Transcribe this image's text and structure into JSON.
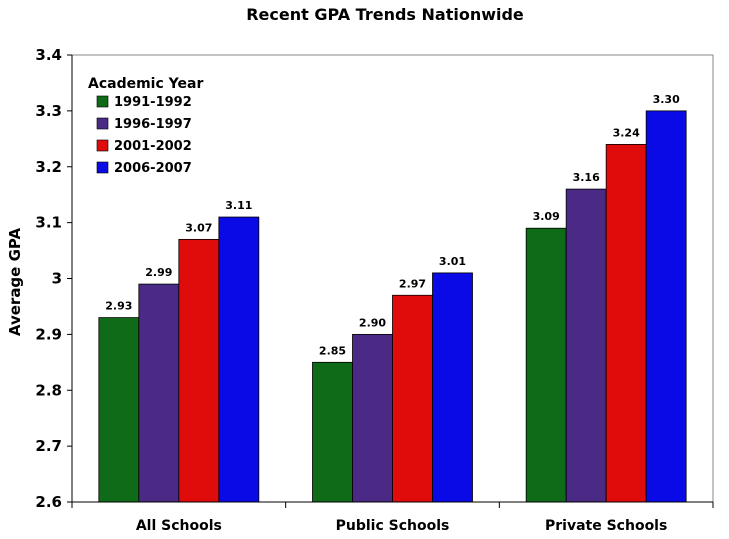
{
  "chart_data": {
    "type": "bar",
    "title": "Recent GPA Trends Nationwide",
    "xlabel": "",
    "ylabel": "Average GPA",
    "ylim": [
      2.6,
      3.4
    ],
    "y_ticks": [
      "2.6",
      "2.7",
      "2.8",
      "2.9",
      "3",
      "3.1",
      "3.2",
      "3.3",
      "3.4"
    ],
    "grid": false,
    "legend_title": "Academic Year",
    "legend_position": "top-left",
    "categories": [
      "All Schools",
      "Public Schools",
      "Private Schools"
    ],
    "series": [
      {
        "name": "1991-1992",
        "color": "#0f6b17",
        "values": [
          2.93,
          2.85,
          3.09
        ],
        "labels": [
          "2.93",
          "2.85",
          "3.09"
        ]
      },
      {
        "name": "1996-1997",
        "color": "#4b2a86",
        "values": [
          2.99,
          2.9,
          3.16
        ],
        "labels": [
          "2.99",
          "2.90",
          "3.16"
        ]
      },
      {
        "name": "2001-2002",
        "color": "#e00c0c",
        "values": [
          3.07,
          2.97,
          3.24
        ],
        "labels": [
          "3.07",
          "2.97",
          "3.24"
        ]
      },
      {
        "name": "2006-2007",
        "color": "#0a0ae6",
        "values": [
          3.11,
          3.01,
          3.3
        ],
        "labels": [
          "3.11",
          "3.01",
          "3.30"
        ]
      }
    ]
  }
}
